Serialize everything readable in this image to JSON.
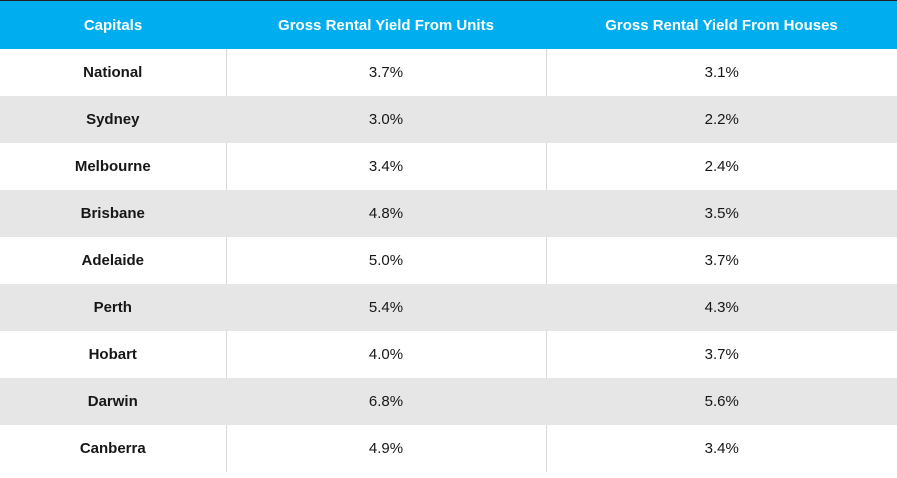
{
  "colors": {
    "accent": "#00AEEF",
    "stripe": "#E6E6E6",
    "divider": "#D9D9D9",
    "header_text": "#FFFFFF",
    "body_text": "#161616",
    "top_border": "#1F1F1F"
  },
  "chart_data": {
    "type": "table",
    "title": "",
    "columns": [
      "Capitals",
      "Gross Rental Yield From Units",
      "Gross Rental Yield From Houses"
    ],
    "categories": [
      "National",
      "Sydney",
      "Melbourne",
      "Brisbane",
      "Adelaide",
      "Perth",
      "Hobart",
      "Darwin",
      "Canberra"
    ],
    "series": [
      {
        "name": "Gross Rental Yield From Units",
        "values": [
          3.7,
          3.0,
          3.4,
          4.8,
          5.0,
          5.4,
          4.0,
          6.8,
          4.9
        ]
      },
      {
        "name": "Gross Rental Yield From Houses",
        "values": [
          3.1,
          2.2,
          2.4,
          3.5,
          3.7,
          4.3,
          3.7,
          5.6,
          3.4
        ]
      }
    ],
    "rows": [
      {
        "capital": "National",
        "units": "3.7%",
        "houses": "3.1%"
      },
      {
        "capital": "Sydney",
        "units": "3.0%",
        "houses": "2.2%"
      },
      {
        "capital": "Melbourne",
        "units": "3.4%",
        "houses": "2.4%"
      },
      {
        "capital": "Brisbane",
        "units": "4.8%",
        "houses": "3.5%"
      },
      {
        "capital": "Adelaide",
        "units": "5.0%",
        "houses": "3.7%"
      },
      {
        "capital": "Perth",
        "units": "5.4%",
        "houses": "4.3%"
      },
      {
        "capital": "Hobart",
        "units": "4.0%",
        "houses": "3.7%"
      },
      {
        "capital": "Darwin",
        "units": "6.8%",
        "houses": "5.6%"
      },
      {
        "capital": "Canberra",
        "units": "4.9%",
        "houses": "3.4%"
      }
    ]
  }
}
